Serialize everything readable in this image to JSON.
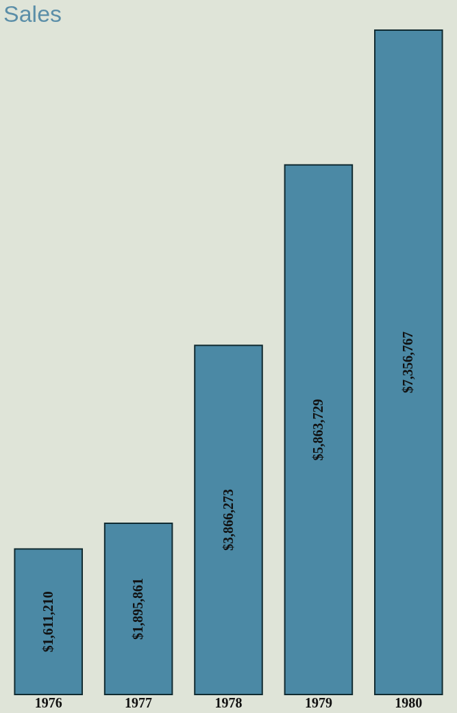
{
  "chart_data": {
    "type": "bar",
    "title": "Sales",
    "categories": [
      "1976",
      "1977",
      "1978",
      "1979",
      "1980"
    ],
    "values": [
      1611210,
      1895861,
      3866273,
      5863729,
      7356767
    ],
    "value_labels": [
      "$1,611,210",
      "$1,895,861",
      "$3,866,273",
      "$5,863,729",
      "$7,356,767"
    ],
    "color": "#4b89a5"
  }
}
